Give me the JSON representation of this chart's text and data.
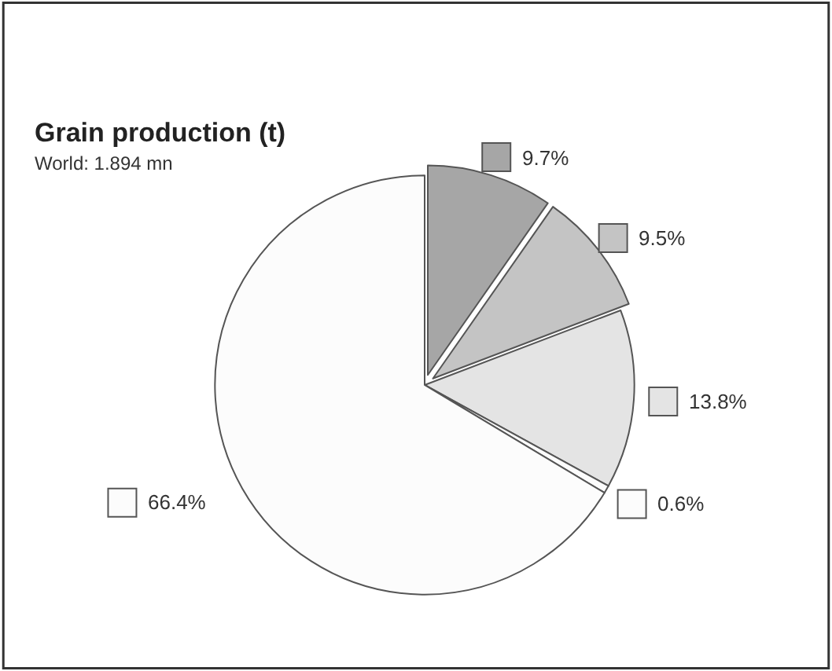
{
  "chart_data": {
    "type": "pie",
    "title": "Grain production (t)",
    "subtitle": "World: 1.894 mn",
    "categories": [
      null,
      null,
      null,
      null,
      null
    ],
    "values": [
      9.7,
      9.5,
      13.8,
      0.6,
      66.4
    ],
    "colors": [
      "#a6a6a6",
      "#c4c4c4",
      "#e4e4e4",
      "#fcfcfc",
      "#fcfcfc"
    ],
    "value_labels": [
      "9.7%",
      "9.5%",
      "13.8%",
      "0.6%",
      "66.4%"
    ],
    "legend": false
  }
}
